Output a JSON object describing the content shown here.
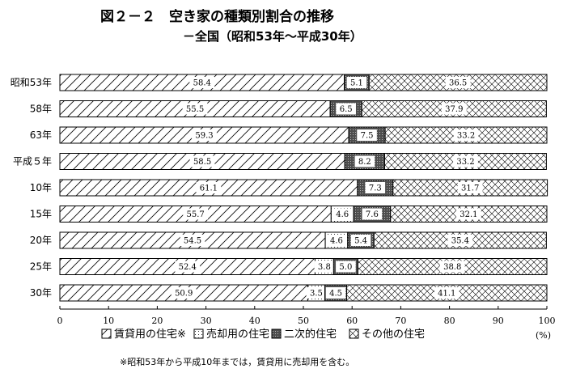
{
  "chart_data": {
    "type": "bar",
    "orientation": "horizontal",
    "stacked": true,
    "title": "図２－２　空き家の種類別割合の推移",
    "subtitle": "－全国（昭和53年～平成30年）",
    "x_unit": "(%)",
    "xlim": [
      0,
      100
    ],
    "x_ticks": [
      "0",
      "10",
      "20",
      "30",
      "40",
      "50",
      "60",
      "70",
      "80",
      "90",
      "100"
    ],
    "grid": false,
    "legend_position": "bottom",
    "categories": [
      "昭和53年",
      "58年",
      "63年",
      "平成５年",
      "10年",
      "15年",
      "20年",
      "25年",
      "30年"
    ],
    "series": [
      {
        "name": "賃貸用の住宅※",
        "pattern": "diagonal",
        "values": [
          58.4,
          55.5,
          59.3,
          58.5,
          61.1,
          55.7,
          54.5,
          52.4,
          50.9
        ]
      },
      {
        "name": "売却用の住宅",
        "pattern": "dotted",
        "values": [
          0,
          0,
          0,
          0,
          0,
          4.6,
          4.6,
          3.8,
          3.5
        ]
      },
      {
        "name": "二次的住宅",
        "pattern": "dark-dots",
        "values": [
          5.1,
          6.5,
          7.5,
          8.2,
          7.3,
          7.6,
          5.4,
          5.0,
          4.5
        ]
      },
      {
        "name": "その他の住宅",
        "pattern": "crosshatch",
        "values": [
          36.5,
          37.9,
          33.2,
          33.2,
          31.7,
          32.1,
          35.4,
          38.8,
          41.1
        ]
      }
    ],
    "value_labels": [
      [
        "58.4",
        "",
        "5.1",
        "36.5"
      ],
      [
        "55.5",
        "",
        "6.5",
        "37.9"
      ],
      [
        "59.3",
        "",
        "7.5",
        "33.2"
      ],
      [
        "58.5",
        "",
        "8.2",
        "33.2"
      ],
      [
        "61.1",
        "",
        "7.3",
        "31.7"
      ],
      [
        "55.7",
        "4.6",
        "7.6",
        "32.1"
      ],
      [
        "54.5",
        "4.6",
        "5.4",
        "35.4"
      ],
      [
        "52.4",
        "3.8",
        "5.0",
        "38.8"
      ],
      [
        "50.9",
        "3.5",
        "4.5",
        "41.1"
      ]
    ],
    "note": "※昭和53年から平成10年までは，賃貸用に売却用を含む。"
  }
}
